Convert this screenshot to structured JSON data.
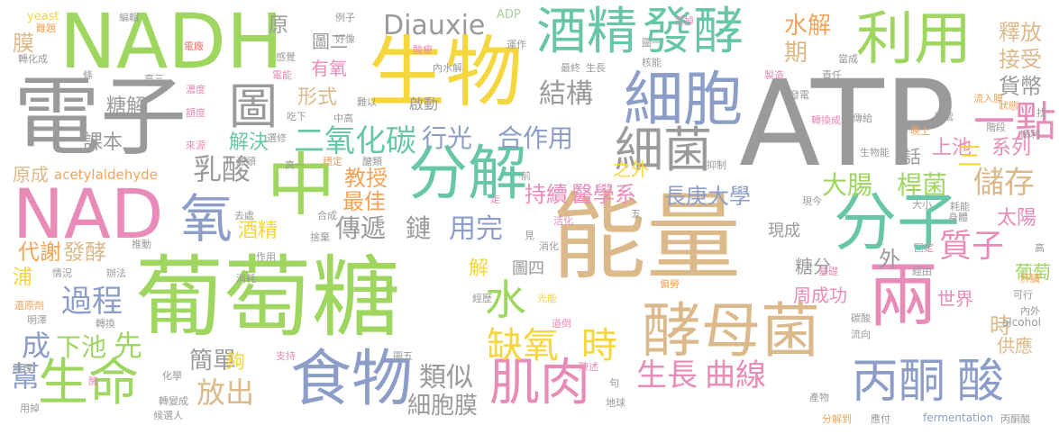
{
  "palette": {
    "gray": "#9a9a9a",
    "green": "#9fd660",
    "yellow": "#f5d63d",
    "tan": "#dcb98a",
    "blue": "#8c9ec8",
    "pink": "#e98bb8",
    "teal": "#68c6a8",
    "orange": "#f2a45a",
    "red": "#ef7068",
    "lightgreen": "#a9d3a0"
  },
  "words": [
    {
      "text": "能量",
      "color": "tan"
    },
    {
      "text": "葡萄糖",
      "color": "green"
    },
    {
      "text": "ATP",
      "color": "gray"
    },
    {
      "text": "電子",
      "color": "gray"
    },
    {
      "text": "生物",
      "color": "yellow"
    },
    {
      "text": "NADH",
      "color": "green"
    },
    {
      "text": "NAD",
      "color": "pink"
    },
    {
      "text": "酵母菌",
      "color": "tan"
    },
    {
      "text": "分子",
      "color": "teal"
    },
    {
      "text": "兩",
      "color": "pink"
    },
    {
      "text": "分解",
      "color": "teal"
    },
    {
      "text": "中",
      "color": "green"
    },
    {
      "text": "利用",
      "color": "green"
    },
    {
      "text": "細胞",
      "color": "blue"
    },
    {
      "text": "食物",
      "color": "blue"
    },
    {
      "text": "細菌",
      "color": "gray"
    },
    {
      "text": "酒精",
      "color": "teal"
    },
    {
      "text": "發酵",
      "color": "teal"
    },
    {
      "text": "圖",
      "color": "gray"
    },
    {
      "text": "生命",
      "color": "green"
    },
    {
      "text": "肌肉",
      "color": "pink"
    },
    {
      "text": "丙酮",
      "color": "blue"
    },
    {
      "text": "酸",
      "color": "blue"
    },
    {
      "text": "缺氧",
      "color": "yellow"
    },
    {
      "text": "時",
      "color": "yellow"
    },
    {
      "text": "水",
      "color": "green"
    },
    {
      "text": "氧",
      "color": "blue"
    },
    {
      "text": "一點",
      "color": "pink"
    },
    {
      "text": "Diauxie",
      "color": "gray"
    },
    {
      "text": "二氧化碳",
      "color": "teal"
    },
    {
      "text": "結構",
      "color": "gray"
    },
    {
      "text": "生長",
      "color": "pink"
    },
    {
      "text": "曲線",
      "color": "pink"
    },
    {
      "text": "乳酸",
      "color": "gray"
    },
    {
      "text": "過程",
      "color": "blue"
    },
    {
      "text": "放出",
      "color": "tan"
    },
    {
      "text": "類似",
      "color": "gray"
    },
    {
      "text": "行光",
      "color": "blue"
    },
    {
      "text": "合作用",
      "color": "blue"
    },
    {
      "text": "儲存",
      "color": "tan"
    },
    {
      "text": "大腸",
      "color": "green"
    },
    {
      "text": "桿菌",
      "color": "green"
    },
    {
      "text": "傳遞",
      "color": "gray"
    },
    {
      "text": "鏈",
      "color": "gray"
    },
    {
      "text": "用完",
      "color": "blue"
    },
    {
      "text": "質子",
      "color": "pink"
    },
    {
      "text": "持續",
      "color": "pink"
    },
    {
      "text": "醫學系",
      "color": "pink"
    },
    {
      "text": "長庚大學",
      "color": "blue"
    },
    {
      "text": "教授",
      "color": "orange"
    },
    {
      "text": "最佳",
      "color": "orange"
    },
    {
      "text": "酒精",
      "color": "yellow"
    },
    {
      "text": "代謝",
      "color": "orange"
    },
    {
      "text": "發酵",
      "color": "tan"
    },
    {
      "text": "成",
      "color": "blue"
    },
    {
      "text": "下池",
      "color": "green"
    },
    {
      "text": "先",
      "color": "green"
    },
    {
      "text": "簡單",
      "color": "gray"
    },
    {
      "text": "幫",
      "color": "blue"
    },
    {
      "text": "細胞膜",
      "color": "gray"
    },
    {
      "text": "水解",
      "color": "orange"
    },
    {
      "text": "釋放",
      "color": "tan"
    },
    {
      "text": "接受",
      "color": "tan"
    },
    {
      "text": "貨幣",
      "color": "gray"
    },
    {
      "text": "期",
      "color": "tan"
    },
    {
      "text": "形式",
      "color": "tan"
    },
    {
      "text": "有氧",
      "color": "pink"
    },
    {
      "text": "解決",
      "color": "teal"
    },
    {
      "text": "課本",
      "color": "gray"
    },
    {
      "text": "糖解",
      "color": "gray"
    },
    {
      "text": "膜",
      "color": "tan"
    },
    {
      "text": "原成",
      "color": "tan"
    },
    {
      "text": "acetylaldehyde",
      "color": "orange"
    },
    {
      "text": "上池",
      "color": "pink"
    },
    {
      "text": "系列",
      "color": "pink"
    },
    {
      "text": "太陽",
      "color": "pink"
    },
    {
      "text": "葡萄",
      "color": "green"
    },
    {
      "text": "時",
      "color": "tan"
    },
    {
      "text": "供應",
      "color": "tan"
    },
    {
      "text": "世界",
      "color": "pink"
    },
    {
      "text": "周成功",
      "color": "pink"
    },
    {
      "text": "糖分",
      "color": "gray"
    },
    {
      "text": "現成",
      "color": "gray"
    },
    {
      "text": "圖四",
      "color": "gray"
    },
    {
      "text": "解",
      "color": "yellow"
    },
    {
      "text": "夠",
      "color": "yellow"
    },
    {
      "text": "浦",
      "color": "yellow"
    },
    {
      "text": "之外",
      "color": "yellow"
    },
    {
      "text": "外",
      "color": "gray"
    },
    {
      "text": "原",
      "color": "gray"
    },
    {
      "text": "圖二",
      "color": "gray"
    },
    {
      "text": "啟動",
      "color": "gray"
    },
    {
      "text": "話",
      "color": "gray"
    },
    {
      "text": "三",
      "color": "yellow"
    },
    {
      "text": "yeast",
      "color": "yellow"
    },
    {
      "text": "ADP",
      "color": "lightgreen"
    },
    {
      "text": "例子",
      "color": "gray"
    },
    {
      "text": "難題",
      "color": "orange"
    },
    {
      "text": "轉化成",
      "color": "gray"
    },
    {
      "text": "高三",
      "color": "gray"
    },
    {
      "text": "alcohol",
      "color": "gray"
    },
    {
      "text": "fermentation",
      "color": "blue"
    },
    {
      "text": "丙酮酸",
      "color": "gray"
    },
    {
      "text": "分解到",
      "color": "orange"
    },
    {
      "text": "應付",
      "color": "gray"
    },
    {
      "text": "地球",
      "color": "gray"
    },
    {
      "text": "候選人",
      "color": "gray"
    },
    {
      "text": "轉變成",
      "color": "gray"
    },
    {
      "text": "用掉",
      "color": "gray"
    },
    {
      "text": "原理",
      "color": "gray"
    },
    {
      "text": "消化",
      "color": "gray"
    },
    {
      "text": "產物",
      "color": "gray"
    },
    {
      "text": "身體",
      "color": "gray"
    },
    {
      "text": "大小",
      "color": "gray"
    },
    {
      "text": "生物能",
      "color": "gray"
    },
    {
      "text": "傳給",
      "color": "gray"
    },
    {
      "text": "高一",
      "color": "gray"
    },
    {
      "text": "中高",
      "color": "gray"
    },
    {
      "text": "難以",
      "color": "gray"
    },
    {
      "text": "吃下",
      "color": "gray"
    },
    {
      "text": "來源",
      "color": "pink"
    },
    {
      "text": "作用",
      "color": "gray"
    },
    {
      "text": "推動",
      "color": "gray"
    },
    {
      "text": "去處",
      "color": "gray"
    },
    {
      "text": "捨棄",
      "color": "gray"
    },
    {
      "text": "合成",
      "color": "gray"
    },
    {
      "text": "活化",
      "color": "pink"
    },
    {
      "text": "消耗",
      "color": "gray"
    },
    {
      "text": "情況",
      "color": "gray"
    },
    {
      "text": "辦法",
      "color": "gray"
    },
    {
      "text": "還原劑",
      "color": "orange"
    },
    {
      "text": "明澤",
      "color": "gray"
    },
    {
      "text": "轉換",
      "color": "gray"
    },
    {
      "text": "經歷",
      "color": "gray"
    },
    {
      "text": "光能",
      "color": "yellow"
    },
    {
      "text": "偏勞",
      "color": "orange"
    },
    {
      "text": "道倒",
      "color": "pink"
    },
    {
      "text": "陳述",
      "color": "pink"
    },
    {
      "text": "圖五",
      "color": "gray"
    },
    {
      "text": "支持",
      "color": "pink"
    },
    {
      "text": "化學",
      "color": "gray"
    },
    {
      "text": "電能",
      "color": "pink"
    },
    {
      "text": "電廠",
      "color": "red"
    },
    {
      "text": "感覺",
      "color": "gray"
    },
    {
      "text": "好像",
      "color": "gray"
    },
    {
      "text": "酸瘦",
      "color": "pink"
    },
    {
      "text": "運作",
      "color": "gray"
    },
    {
      "text": "最終",
      "color": "gray"
    },
    {
      "text": "圖一",
      "color": "gray"
    },
    {
      "text": "核能",
      "color": "gray"
    },
    {
      "text": "內水解",
      "color": "gray"
    },
    {
      "text": "生長",
      "color": "gray"
    },
    {
      "text": "丟掉",
      "color": "pink"
    },
    {
      "text": "當成",
      "color": "gray"
    },
    {
      "text": "流入膜",
      "color": "orange"
    },
    {
      "text": "狀態",
      "color": "orange"
    },
    {
      "text": "用處",
      "color": "gray"
    },
    {
      "text": "階段",
      "color": "gray"
    },
    {
      "text": "順利",
      "color": "gray"
    },
    {
      "text": "晚上",
      "color": "orange"
    },
    {
      "text": "發電",
      "color": "gray"
    },
    {
      "text": "製造",
      "color": "pink"
    },
    {
      "text": "責任",
      "color": "gray"
    },
    {
      "text": "轉換成",
      "color": "pink"
    },
    {
      "text": "耗能",
      "color": "gray"
    },
    {
      "text": "抑制",
      "color": "gray"
    },
    {
      "text": "現今",
      "color": "gray"
    },
    {
      "text": "固定",
      "color": "pink"
    },
    {
      "text": "經由",
      "color": "gray"
    },
    {
      "text": "基礎",
      "color": "pink"
    },
    {
      "text": "可行",
      "color": "gray"
    },
    {
      "text": "內外",
      "color": "gray"
    },
    {
      "text": "碳酸",
      "color": "gray"
    },
    {
      "text": "流向",
      "color": "gray"
    },
    {
      "text": "肝臟",
      "color": "orange"
    },
    {
      "text": "源頭",
      "color": "gray"
    },
    {
      "text": "選修",
      "color": "gray"
    },
    {
      "text": "穩定",
      "color": "orange"
    },
    {
      "text": "醣類",
      "color": "gray"
    },
    {
      "text": "濃度",
      "color": "pink"
    },
    {
      "text": "額度",
      "color": "pink"
    },
    {
      "text": "編輯",
      "color": "gray"
    },
    {
      "text": "條",
      "color": "gray"
    },
    {
      "text": "走",
      "color": "pink"
    },
    {
      "text": "前",
      "color": "gray"
    },
    {
      "text": "見",
      "color": "gray"
    },
    {
      "text": "五",
      "color": "gray"
    },
    {
      "text": "句",
      "color": "gray"
    },
    {
      "text": "找",
      "color": "gray"
    },
    {
      "text": "高",
      "color": "gray"
    },
    {
      "text": "酶",
      "color": "pink"
    }
  ]
}
